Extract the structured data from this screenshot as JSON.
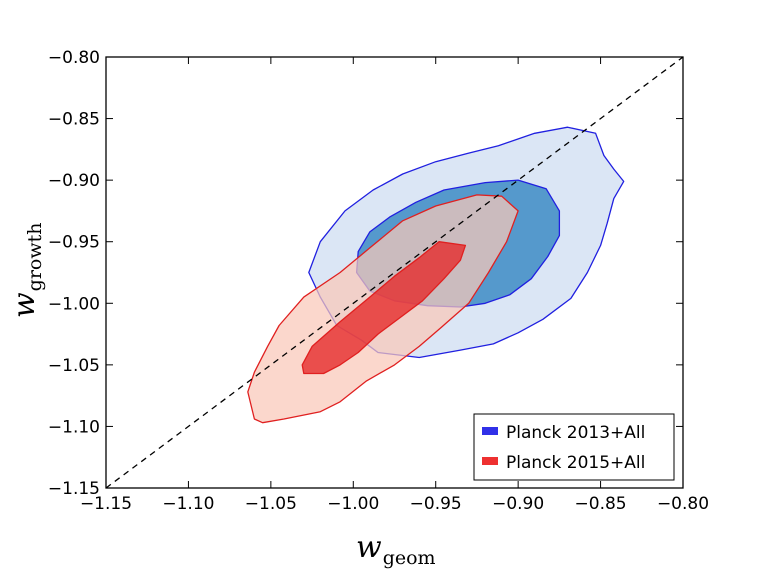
{
  "chart_data": {
    "type": "contour",
    "title": "",
    "xlabel": "w",
    "xlabel_subscript": "geom",
    "ylabel": "w",
    "ylabel_subscript": "growth",
    "xlim": [
      -1.15,
      -0.8
    ],
    "ylim": [
      -1.15,
      -0.8
    ],
    "x_ticks": [
      -1.15,
      -1.1,
      -1.05,
      -1.0,
      -0.95,
      -0.9,
      -0.85,
      -0.8
    ],
    "y_ticks": [
      -1.15,
      -1.1,
      -1.05,
      -1.0,
      -0.95,
      -0.9,
      -0.85,
      -0.8
    ],
    "x_tick_labels": [
      "−1.15",
      "−1.10",
      "−1.05",
      "−1.00",
      "−0.95",
      "−0.90",
      "−0.85",
      "−0.80"
    ],
    "y_tick_labels": [
      "−1.15",
      "−1.10",
      "−1.05",
      "−1.00",
      "−0.95",
      "−0.90",
      "−0.85",
      "−0.80"
    ],
    "grid": false,
    "reference_line": {
      "from": [
        -1.15,
        -1.15
      ],
      "to": [
        -0.8,
        -0.8
      ],
      "style": "dashed"
    },
    "legend_position": "lower-right",
    "series": [
      {
        "name": "Planck 2013+All",
        "edge_color": "#2020e0",
        "legend_color": "#3030e8",
        "contours": [
          {
            "level": "95%",
            "fill": "#dbe6f5",
            "points": [
              [
                -0.912,
                -0.872
              ],
              [
                -0.89,
                -0.862
              ],
              [
                -0.87,
                -0.857
              ],
              [
                -0.853,
                -0.862
              ],
              [
                -0.848,
                -0.88
              ],
              [
                -0.842,
                -0.891
              ],
              [
                -0.836,
                -0.901
              ],
              [
                -0.842,
                -0.915
              ],
              [
                -0.846,
                -0.935
              ],
              [
                -0.85,
                -0.953
              ],
              [
                -0.858,
                -0.975
              ],
              [
                -0.868,
                -0.996
              ],
              [
                -0.885,
                -1.013
              ],
              [
                -0.9,
                -1.024
              ],
              [
                -0.915,
                -1.033
              ],
              [
                -0.935,
                -1.038
              ],
              [
                -0.96,
                -1.044
              ],
              [
                -0.985,
                -1.04
              ],
              [
                -0.995,
                -1.03
              ],
              [
                -1.01,
                -1.018
              ],
              [
                -1.02,
                -0.995
              ],
              [
                -1.027,
                -0.975
              ],
              [
                -1.02,
                -0.95
              ],
              [
                -1.005,
                -0.925
              ],
              [
                -0.988,
                -0.908
              ],
              [
                -0.97,
                -0.895
              ],
              [
                -0.95,
                -0.885
              ],
              [
                -0.93,
                -0.878
              ]
            ]
          },
          {
            "level": "68%",
            "fill": "#5599cc",
            "points": [
              [
                -0.92,
                -0.902
              ],
              [
                -0.9,
                -0.9
              ],
              [
                -0.883,
                -0.907
              ],
              [
                -0.875,
                -0.925
              ],
              [
                -0.875,
                -0.945
              ],
              [
                -0.882,
                -0.962
              ],
              [
                -0.892,
                -0.98
              ],
              [
                -0.905,
                -0.993
              ],
              [
                -0.92,
                -1.0
              ],
              [
                -0.935,
                -1.003
              ],
              [
                -0.955,
                -1.002
              ],
              [
                -0.975,
                -0.998
              ],
              [
                -0.99,
                -0.99
              ],
              [
                -0.998,
                -0.975
              ],
              [
                -0.997,
                -0.958
              ],
              [
                -0.99,
                -0.942
              ],
              [
                -0.978,
                -0.93
              ],
              [
                -0.962,
                -0.918
              ],
              [
                -0.945,
                -0.908
              ]
            ]
          }
        ]
      },
      {
        "name": "Planck 2015+All",
        "edge_color": "#e02020",
        "legend_color": "#ee3030",
        "contours": [
          {
            "level": "95%",
            "fill": "rgba(250,200,185,0.72)",
            "points": [
              [
                -0.91,
                -0.913
              ],
              [
                -0.925,
                -0.912
              ],
              [
                -0.95,
                -0.921
              ],
              [
                -0.97,
                -0.933
              ],
              [
                -0.99,
                -0.955
              ],
              [
                -1.008,
                -0.975
              ],
              [
                -1.03,
                -0.995
              ],
              [
                -1.045,
                -1.018
              ],
              [
                -1.052,
                -1.035
              ],
              [
                -1.06,
                -1.056
              ],
              [
                -1.064,
                -1.072
              ],
              [
                -1.06,
                -1.094
              ],
              [
                -1.055,
                -1.097
              ],
              [
                -1.042,
                -1.094
              ],
              [
                -1.02,
                -1.088
              ],
              [
                -1.008,
                -1.08
              ],
              [
                -0.992,
                -1.063
              ],
              [
                -0.975,
                -1.05
              ],
              [
                -0.96,
                -1.035
              ],
              [
                -0.947,
                -1.02
              ],
              [
                -0.93,
                -1.0
              ],
              [
                -0.918,
                -0.975
              ],
              [
                -0.907,
                -0.95
              ],
              [
                -0.9,
                -0.925
              ]
            ]
          },
          {
            "level": "68%",
            "fill": "rgba(230,40,40,0.78)",
            "points": [
              [
                -0.948,
                -0.95
              ],
              [
                -0.932,
                -0.953
              ],
              [
                -0.935,
                -0.965
              ],
              [
                -0.945,
                -0.98
              ],
              [
                -0.958,
                -0.998
              ],
              [
                -0.972,
                -1.012
              ],
              [
                -0.985,
                -1.025
              ],
              [
                -0.997,
                -1.04
              ],
              [
                -1.008,
                -1.05
              ],
              [
                -1.018,
                -1.057
              ],
              [
                -1.03,
                -1.057
              ],
              [
                -1.031,
                -1.05
              ],
              [
                -1.025,
                -1.035
              ],
              [
                -1.008,
                -1.015
              ],
              [
                -0.99,
                -0.995
              ],
              [
                -0.975,
                -0.978
              ],
              [
                -0.96,
                -0.963
              ]
            ]
          }
        ]
      }
    ]
  }
}
